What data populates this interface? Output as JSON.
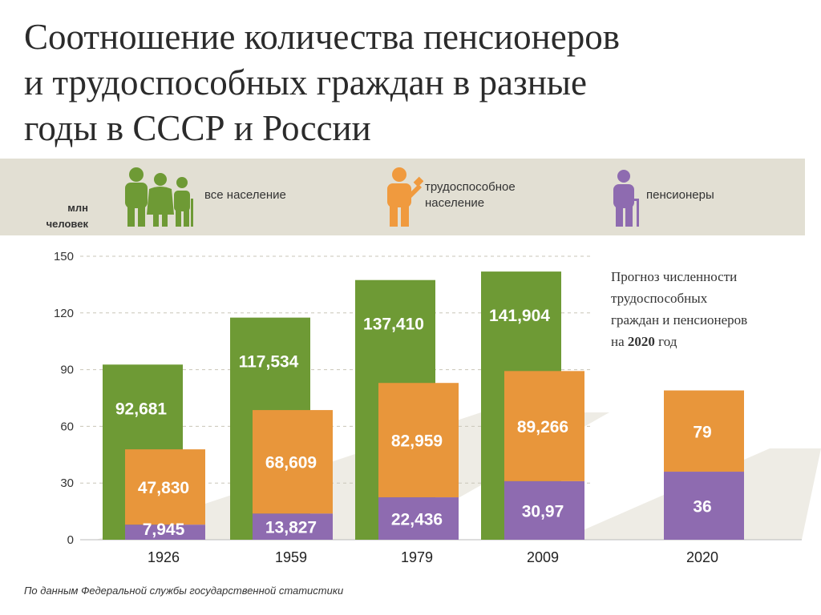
{
  "title_lines": [
    "Соотношение количества пенсионеров",
    "и трудоспособных граждан в разные",
    "годы в СССР и России"
  ],
  "unit_label_lines": [
    "млн",
    "человек"
  ],
  "legend": [
    {
      "label": "все население",
      "color": "#6e9a35",
      "icon": "family-group-icon"
    },
    {
      "label_lines": [
        "трудоспособное",
        "население"
      ],
      "color": "#f09a3e",
      "icon": "worker-icon"
    },
    {
      "label": "пенсионеры",
      "color": "#8e6bb0",
      "icon": "elderly-person-icon"
    }
  ],
  "forecast_note": {
    "lines": [
      "Прогноз численности",
      "трудоспособных",
      "граждан и пенсионеров"
    ],
    "last_prefix": "на ",
    "last_bold": "2020",
    "last_suffix": " год"
  },
  "source": "По данным Федеральной службы государственной статистики",
  "colors": {
    "total": "#6e9a35",
    "working": "#e8963b",
    "pensioners": "#8e6bb0",
    "band": "#e2dfd3"
  },
  "chart_data": {
    "type": "bar",
    "categories": [
      "1926",
      "1959",
      "1979",
      "2009",
      "2020"
    ],
    "ylim": [
      0,
      150
    ],
    "yticks": [
      0,
      30,
      60,
      90,
      120,
      150
    ],
    "grid": true,
    "series": [
      {
        "name": "все население",
        "values": [
          92.681,
          117.534,
          137.41,
          141.904,
          null
        ],
        "labels": [
          "92,681",
          "117,534",
          "137,410",
          "141,904",
          ""
        ]
      },
      {
        "name": "трудоспособное население",
        "values": [
          47.83,
          68.609,
          82.959,
          89.266,
          79
        ],
        "labels": [
          "47,830",
          "68,609",
          "82,959",
          "89,266",
          "79"
        ]
      },
      {
        "name": "пенсионеры",
        "values": [
          7.945,
          13.827,
          22.436,
          30.97,
          36
        ],
        "labels": [
          "7,945",
          "13,827",
          "22,436",
          "30,97",
          "36"
        ]
      }
    ]
  }
}
